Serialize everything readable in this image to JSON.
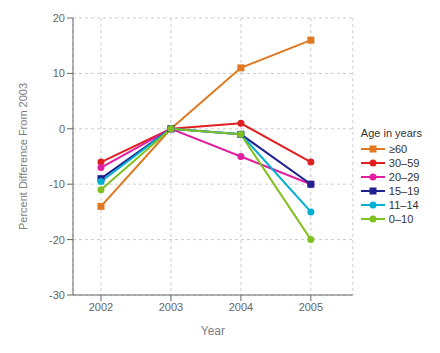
{
  "chart_data": {
    "type": "line",
    "x": [
      2002,
      2003,
      2004,
      2005
    ],
    "series": [
      {
        "name": "≥60",
        "values": [
          -14,
          0,
          11,
          16
        ],
        "color": "#E07820",
        "marker": "square"
      },
      {
        "name": "30–59",
        "values": [
          -6,
          0,
          1,
          -6
        ],
        "color": "#E02020",
        "marker": "circle"
      },
      {
        "name": "20–29",
        "values": [
          -7,
          0,
          -5,
          -10
        ],
        "color": "#E020A0",
        "marker": "circle"
      },
      {
        "name": "15–19",
        "values": [
          -9,
          0,
          -1,
          -10
        ],
        "color": "#202090",
        "marker": "square"
      },
      {
        "name": "11–14",
        "values": [
          -9.5,
          0,
          -1,
          -15
        ],
        "color": "#00B0D0",
        "marker": "circle"
      },
      {
        "name": "0–10",
        "values": [
          -11,
          0,
          -1,
          -20
        ],
        "color": "#80C020",
        "marker": "circle"
      }
    ],
    "x_label": "Year",
    "y_label": "Percent Difference From 2003",
    "xlim": [
      2001.6,
      2005.6
    ],
    "xticks": [
      2002,
      2003,
      2004,
      2005
    ],
    "ylim": [
      -30,
      20
    ],
    "yticks": [
      -30,
      -20,
      -10,
      0,
      10,
      20
    ],
    "grid": true,
    "legend": "right",
    "legend_title": "Age in years"
  }
}
